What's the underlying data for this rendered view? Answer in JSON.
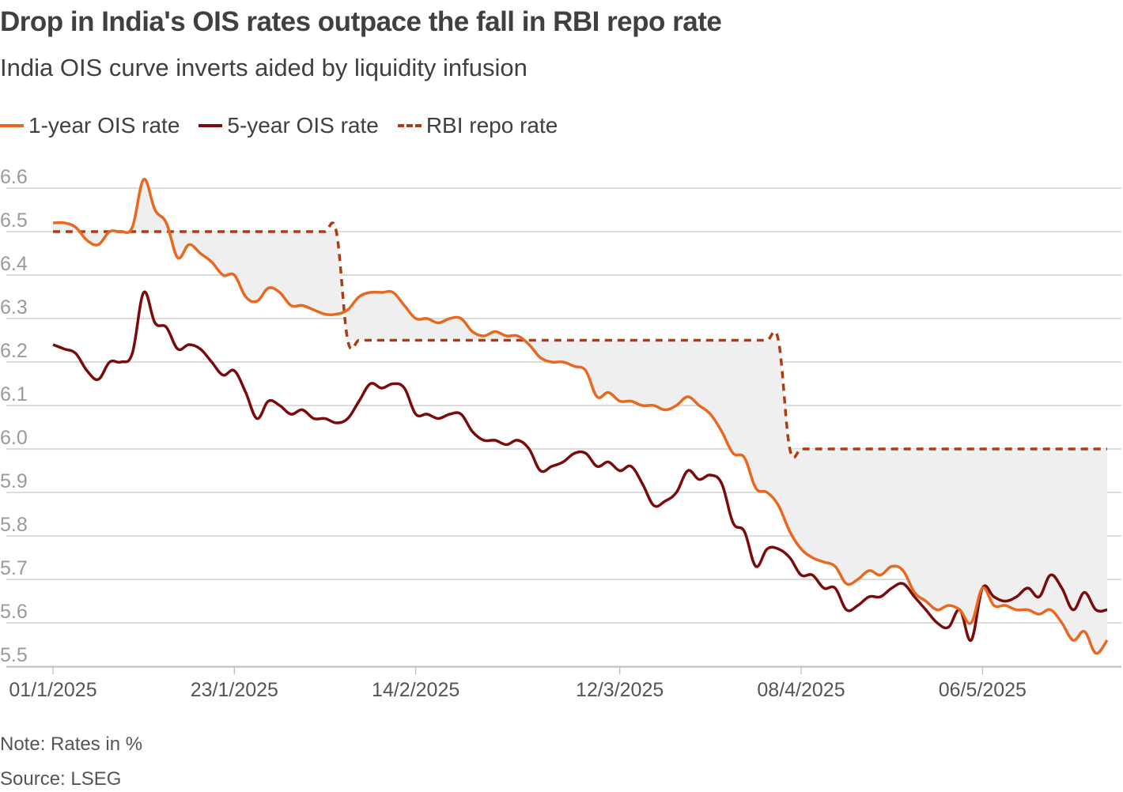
{
  "header": {
    "title": "Drop in India's OIS rates outpace the fall in RBI repo rate",
    "subtitle": "India OIS curve inverts aided by liquidity infusion"
  },
  "legend": {
    "items": [
      {
        "label": "1-year OIS rate",
        "color": "#e8681f",
        "style": "solid"
      },
      {
        "label": "5-year OIS rate",
        "color": "#7a0b0b",
        "style": "solid"
      },
      {
        "label": "RBI repo rate",
        "color": "#b23a10",
        "style": "dashed"
      }
    ]
  },
  "footer": {
    "note": "Note: Rates in %",
    "source": "Source: LSEG"
  },
  "colors": {
    "ois_1y": "#e8681f",
    "ois_5y": "#7a0b0b",
    "repo": "#b23a10",
    "shade": "#efefef",
    "grid": "#c8c8c8",
    "tick": "#9a9a9a"
  },
  "chart_data": {
    "type": "line",
    "title": "Drop in India's OIS rates outpace the fall in RBI repo rate",
    "xlabel": "",
    "ylabel": "Rates in %",
    "ylim": [
      5.48,
      6.62
    ],
    "y_ticks": [
      "6.6",
      "6.5",
      "6.4",
      "6.3",
      "6.2",
      "6.1",
      "6.0",
      "5.9",
      "5.8",
      "5.7",
      "5.6",
      "5.5"
    ],
    "y_tick_values": [
      6.6,
      6.5,
      6.4,
      6.3,
      6.2,
      6.1,
      6.0,
      5.9,
      5.8,
      5.7,
      5.6,
      5.5
    ],
    "x_ticks": [
      "01/1/2025",
      "23/1/2025",
      "14/2/2025",
      "12/3/2025",
      "08/4/2025",
      "06/5/2025"
    ],
    "x_tick_index": [
      0,
      16,
      32,
      50,
      66,
      82
    ],
    "grid": true,
    "shaded_gap": "between 1-year OIS rate and RBI repo rate",
    "series": [
      {
        "name": "1-year OIS rate",
        "values": [
          6.52,
          6.52,
          6.51,
          6.48,
          6.47,
          6.5,
          6.5,
          6.51,
          6.62,
          6.55,
          6.52,
          6.44,
          6.47,
          6.45,
          6.43,
          6.4,
          6.4,
          6.35,
          6.34,
          6.37,
          6.36,
          6.33,
          6.33,
          6.32,
          6.31,
          6.31,
          6.32,
          6.35,
          6.36,
          6.36,
          6.36,
          6.33,
          6.3,
          6.3,
          6.29,
          6.3,
          6.3,
          6.27,
          6.26,
          6.27,
          6.26,
          6.26,
          6.24,
          6.21,
          6.2,
          6.2,
          6.19,
          6.18,
          6.12,
          6.13,
          6.11,
          6.11,
          6.1,
          6.1,
          6.09,
          6.1,
          6.12,
          6.1,
          6.08,
          6.04,
          5.99,
          5.98,
          5.91,
          5.9,
          5.87,
          5.81,
          5.77,
          5.75,
          5.74,
          5.73,
          5.69,
          5.7,
          5.72,
          5.71,
          5.73,
          5.72,
          5.67,
          5.65,
          5.63,
          5.64,
          5.63,
          5.6,
          5.68,
          5.64,
          5.64,
          5.63,
          5.63,
          5.62,
          5.63,
          5.6,
          5.56,
          5.58,
          5.53,
          5.56
        ]
      },
      {
        "name": "5-year OIS rate",
        "values": [
          6.24,
          6.23,
          6.22,
          6.18,
          6.16,
          6.2,
          6.2,
          6.22,
          6.36,
          6.29,
          6.28,
          6.23,
          6.24,
          6.23,
          6.2,
          6.17,
          6.18,
          6.13,
          6.07,
          6.11,
          6.1,
          6.08,
          6.09,
          6.07,
          6.07,
          6.06,
          6.07,
          6.11,
          6.15,
          6.14,
          6.15,
          6.14,
          6.08,
          6.08,
          6.07,
          6.08,
          6.08,
          6.04,
          6.02,
          6.02,
          6.01,
          6.02,
          6.0,
          5.95,
          5.96,
          5.97,
          5.99,
          5.99,
          5.96,
          5.97,
          5.95,
          5.96,
          5.92,
          5.87,
          5.88,
          5.9,
          5.95,
          5.93,
          5.94,
          5.92,
          5.83,
          5.81,
          5.73,
          5.77,
          5.77,
          5.75,
          5.71,
          5.71,
          5.68,
          5.68,
          5.63,
          5.64,
          5.66,
          5.66,
          5.68,
          5.69,
          5.66,
          5.63,
          5.6,
          5.59,
          5.63,
          5.56,
          5.68,
          5.66,
          5.65,
          5.66,
          5.68,
          5.66,
          5.71,
          5.68,
          5.63,
          5.67,
          5.63,
          5.63
        ]
      },
      {
        "name": "RBI repo rate",
        "values": [
          6.5,
          6.5,
          6.5,
          6.5,
          6.5,
          6.5,
          6.5,
          6.5,
          6.5,
          6.5,
          6.5,
          6.5,
          6.5,
          6.5,
          6.5,
          6.5,
          6.5,
          6.5,
          6.5,
          6.5,
          6.5,
          6.5,
          6.5,
          6.5,
          6.5,
          6.5,
          6.25,
          6.25,
          6.25,
          6.25,
          6.25,
          6.25,
          6.25,
          6.25,
          6.25,
          6.25,
          6.25,
          6.25,
          6.25,
          6.25,
          6.25,
          6.25,
          6.25,
          6.25,
          6.25,
          6.25,
          6.25,
          6.25,
          6.25,
          6.25,
          6.25,
          6.25,
          6.25,
          6.25,
          6.25,
          6.25,
          6.25,
          6.25,
          6.25,
          6.25,
          6.25,
          6.25,
          6.25,
          6.25,
          6.25,
          6.0,
          6.0,
          6.0,
          6.0,
          6.0,
          6.0,
          6.0,
          6.0,
          6.0,
          6.0,
          6.0,
          6.0,
          6.0,
          6.0,
          6.0,
          6.0,
          6.0,
          6.0,
          6.0,
          6.0,
          6.0,
          6.0,
          6.0,
          6.0,
          6.0,
          6.0,
          6.0,
          6.0,
          6.0
        ]
      }
    ]
  }
}
